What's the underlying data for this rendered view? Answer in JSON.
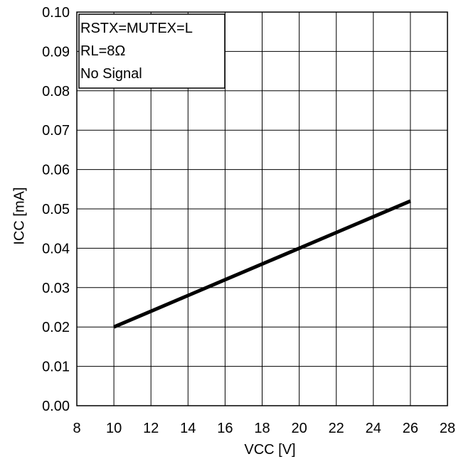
{
  "chart_data": {
    "type": "line",
    "title": "",
    "xlabel": "VCC [V]",
    "ylabel": "ICC [mA]",
    "xlim": [
      8,
      28
    ],
    "ylim": [
      0,
      0.1
    ],
    "xticks": [
      "8",
      "10",
      "12",
      "14",
      "16",
      "18",
      "20",
      "22",
      "24",
      "26",
      "28"
    ],
    "yticks": [
      "0.00",
      "0.01",
      "0.02",
      "0.03",
      "0.04",
      "0.05",
      "0.06",
      "0.07",
      "0.08",
      "0.09",
      "0.10"
    ],
    "grid": true,
    "legend_lines": [
      "RSTX=MUTEX=L",
      "RL=8Ω",
      "No Signal"
    ],
    "legend_position": "top-left",
    "series": [
      {
        "color": "#000000",
        "x": [
          10,
          12,
          14,
          16,
          18,
          20,
          22,
          24,
          26
        ],
        "y": [
          0.02,
          0.024,
          0.028,
          0.032,
          0.036,
          0.04,
          0.044,
          0.048,
          0.052
        ]
      }
    ]
  }
}
